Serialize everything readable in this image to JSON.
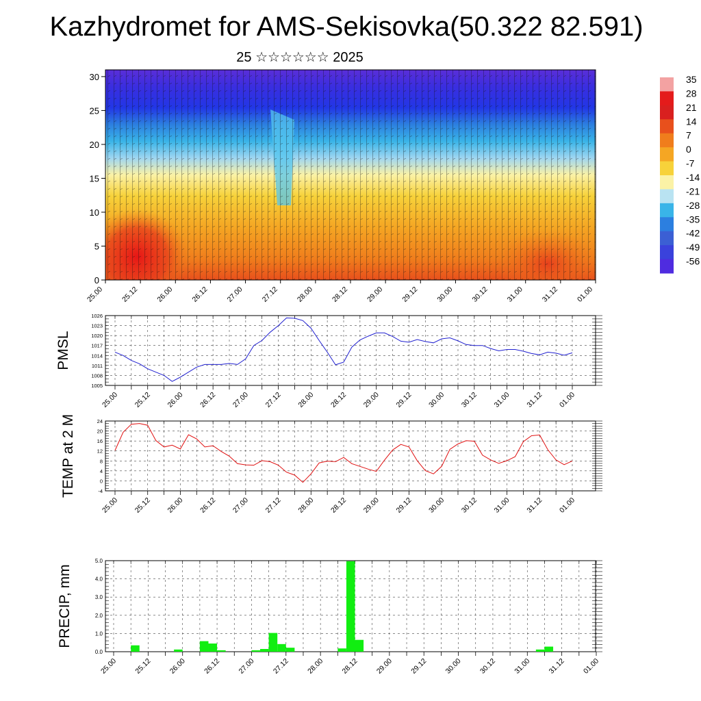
{
  "title": "Kazhydromet for AMS-Sekisovka(50.322 82.591)",
  "subtitle": "25 ☆☆☆☆☆☆ 2025",
  "colors": {
    "pmsl_line": "#1f1fd0",
    "temp_line": "#e01010",
    "precip_bar": "#11ee11",
    "frame": "#000000"
  },
  "chart_data": [
    {
      "id": "cross-section",
      "type": "heatmap",
      "description_shown": "filled contours of temperature with wind barbs",
      "yticks": [
        "0",
        "5",
        "10",
        "15",
        "20",
        "25",
        "30"
      ],
      "ylim": [
        0,
        31
      ],
      "xticks": [
        "25.00",
        "25.12",
        "26.00",
        "26.12",
        "27.00",
        "27.12",
        "28.00",
        "28.12",
        "29.00",
        "29.12",
        "30.00",
        "30.12",
        "31.00",
        "31.12",
        "01.00"
      ],
      "colorbar_labels": [
        "35",
        "28",
        "21",
        "14",
        "7",
        "0",
        "-7",
        "-14",
        "-21",
        "-28",
        "-35",
        "-42",
        "-49",
        "-56"
      ],
      "colorbar_colors": [
        "#f3a2a2",
        "#e41b1b",
        "#d9201f",
        "#e8501c",
        "#f07d1c",
        "#f5a623",
        "#f7d23a",
        "#fbf2a6",
        "#b9e3f2",
        "#39b4e8",
        "#2c7fe0",
        "#3b5fd4",
        "#3a42dc",
        "#4f2ce0"
      ]
    },
    {
      "id": "pmsl",
      "type": "line",
      "ylabel": "PMSL",
      "yticks": [
        "1005",
        "1008",
        "1011",
        "1014",
        "1017",
        "1020",
        "1023",
        "1026"
      ],
      "ylim": [
        1005,
        1026
      ],
      "xticks": [
        "25.00",
        "25.12",
        "26.00",
        "26.12",
        "27.00",
        "27.12",
        "28.00",
        "28.12",
        "29.00",
        "29.12",
        "30.00",
        "30.12",
        "31.00",
        "31.12",
        "01.00"
      ],
      "x_hours": [
        0,
        3,
        6,
        9,
        12,
        15,
        18,
        21,
        24,
        27,
        30,
        33,
        36,
        39,
        42,
        45,
        48,
        51,
        54,
        57,
        60,
        63,
        66,
        69,
        72,
        75,
        78,
        81,
        84,
        87,
        90,
        93,
        96,
        99,
        102,
        105,
        108,
        111,
        114,
        117,
        120,
        123,
        126,
        129,
        132,
        135,
        138,
        141,
        144,
        147,
        150,
        153,
        156,
        159,
        162,
        165,
        168
      ],
      "values": [
        1015,
        1014,
        1012.5,
        1011.5,
        1010,
        1009,
        1008,
        1006.2,
        1007.5,
        1009,
        1010.5,
        1011.3,
        1011.3,
        1011.3,
        1011.6,
        1011.3,
        1013,
        1017,
        1018.5,
        1021,
        1023,
        1025.3,
        1025.2,
        1024.5,
        1022.2,
        1018.5,
        1015,
        1011.2,
        1012,
        1016.5,
        1018.7,
        1019.8,
        1020.8,
        1020.8,
        1019.7,
        1018.3,
        1018,
        1018.8,
        1018.2,
        1017.8,
        1019,
        1019.3,
        1018.4,
        1017.3,
        1017,
        1017,
        1016.1,
        1015.4,
        1015.8,
        1015.8,
        1015.3,
        1014.6,
        1014.2,
        1015,
        1014.7,
        1014.1,
        1014.8
      ]
    },
    {
      "id": "temp2m",
      "type": "line",
      "ylabel": "TEMP at 2 M",
      "yticks": [
        "-4",
        "0",
        "4",
        "8",
        "12",
        "16",
        "20",
        "24"
      ],
      "ylim": [
        -4,
        24
      ],
      "xticks": [
        "25.00",
        "25.12",
        "26.00",
        "26.12",
        "27.00",
        "27.12",
        "28.00",
        "28.12",
        "29.00",
        "29.12",
        "30.00",
        "30.12",
        "31.00",
        "31.12",
        "01.00"
      ],
      "x_hours": [
        0,
        3,
        6,
        9,
        12,
        15,
        18,
        21,
        24,
        27,
        30,
        33,
        36,
        39,
        42,
        45,
        48,
        51,
        54,
        57,
        60,
        63,
        66,
        69,
        72,
        75,
        78,
        81,
        84,
        87,
        90,
        93,
        96,
        99,
        102,
        105,
        108,
        111,
        114,
        117,
        120,
        123,
        126,
        129,
        132,
        135,
        138,
        141,
        144,
        147,
        150,
        153,
        156,
        159,
        162,
        165,
        168
      ],
      "values": [
        12.2,
        19.5,
        22.7,
        23,
        22.3,
        16.2,
        13.6,
        14.3,
        12.8,
        18.5,
        16.8,
        13.6,
        14.1,
        11.8,
        9.9,
        6.9,
        6.4,
        6.3,
        8.1,
        7.7,
        6.3,
        3.5,
        2.3,
        -0.6,
        2.8,
        7.2,
        7.9,
        7.7,
        9.4,
        6.9,
        5.8,
        4.7,
        3.8,
        8.3,
        12.4,
        14.6,
        13.6,
        8.1,
        4.1,
        2.8,
        5.8,
        12.6,
        14.8,
        16.1,
        15.9,
        10.3,
        8.4,
        7.0,
        8.1,
        9.7,
        15.7,
        18.1,
        18.4,
        12.5,
        8.4,
        6.5,
        8.0
      ]
    },
    {
      "id": "precip",
      "type": "bar",
      "ylabel": "PRECIP, mm",
      "yticks": [
        "0.0",
        "1.0",
        "2.0",
        "3.0",
        "4.0",
        "5.0"
      ],
      "ylim": [
        0,
        5
      ],
      "xticks": [
        "25.00",
        "25.12",
        "26.00",
        "26.12",
        "27.00",
        "27.12",
        "28.00",
        "28.12",
        "29.00",
        "29.12",
        "30.00",
        "30.12",
        "31.00",
        "31.12",
        "01.00"
      ],
      "bars": [
        {
          "x_hour": 7.5,
          "value": 0.35
        },
        {
          "x_hour": 22.5,
          "value": 0.12
        },
        {
          "x_hour": 31.5,
          "value": 0.58
        },
        {
          "x_hour": 34.5,
          "value": 0.45
        },
        {
          "x_hour": 37.5,
          "value": 0.08
        },
        {
          "x_hour": 49.5,
          "value": 0.08
        },
        {
          "x_hour": 52.5,
          "value": 0.15
        },
        {
          "x_hour": 55.5,
          "value": 1.03
        },
        {
          "x_hour": 58.5,
          "value": 0.42
        },
        {
          "x_hour": 61.5,
          "value": 0.22
        },
        {
          "x_hour": 79.5,
          "value": 0.18
        },
        {
          "x_hour": 82.5,
          "value": 4.97
        },
        {
          "x_hour": 85.5,
          "value": 0.65
        },
        {
          "x_hour": 148.5,
          "value": 0.12
        },
        {
          "x_hour": 151.5,
          "value": 0.28
        }
      ]
    }
  ]
}
